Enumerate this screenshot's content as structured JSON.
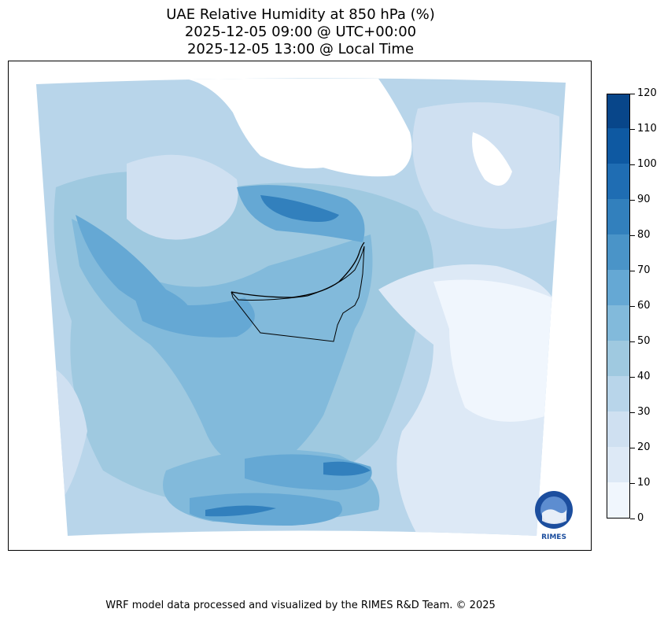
{
  "title": {
    "line1": "UAE Relative Humidity at 850 hPa (%)",
    "line2": "2025-12-05 09:00 @ UTC+00:00",
    "line3": "2025-12-05 13:00 @ Local Time"
  },
  "colorbar": {
    "min": 0,
    "max": 120,
    "levels": [
      0,
      10,
      20,
      30,
      40,
      50,
      60,
      70,
      80,
      90,
      100,
      110,
      120
    ],
    "colors": [
      "#f0f6fd",
      "#dde9f6",
      "#cfe0f1",
      "#b8d5ea",
      "#9fc9e0",
      "#82badb",
      "#65a8d4",
      "#4a94c8",
      "#3280bd",
      "#1f6db3",
      "#0e59a2",
      "#08468a",
      "#083773"
    ]
  },
  "map": {
    "variable": "relative humidity at 850 hPa",
    "no_data_color": "#ffffff",
    "boundary_color": "#000000"
  },
  "logo": {
    "icon": "rimes-logo-icon",
    "text": "RIMES"
  },
  "footer": "WRF model data processed and visualized by the RIMES R&D Team. © 2025"
}
